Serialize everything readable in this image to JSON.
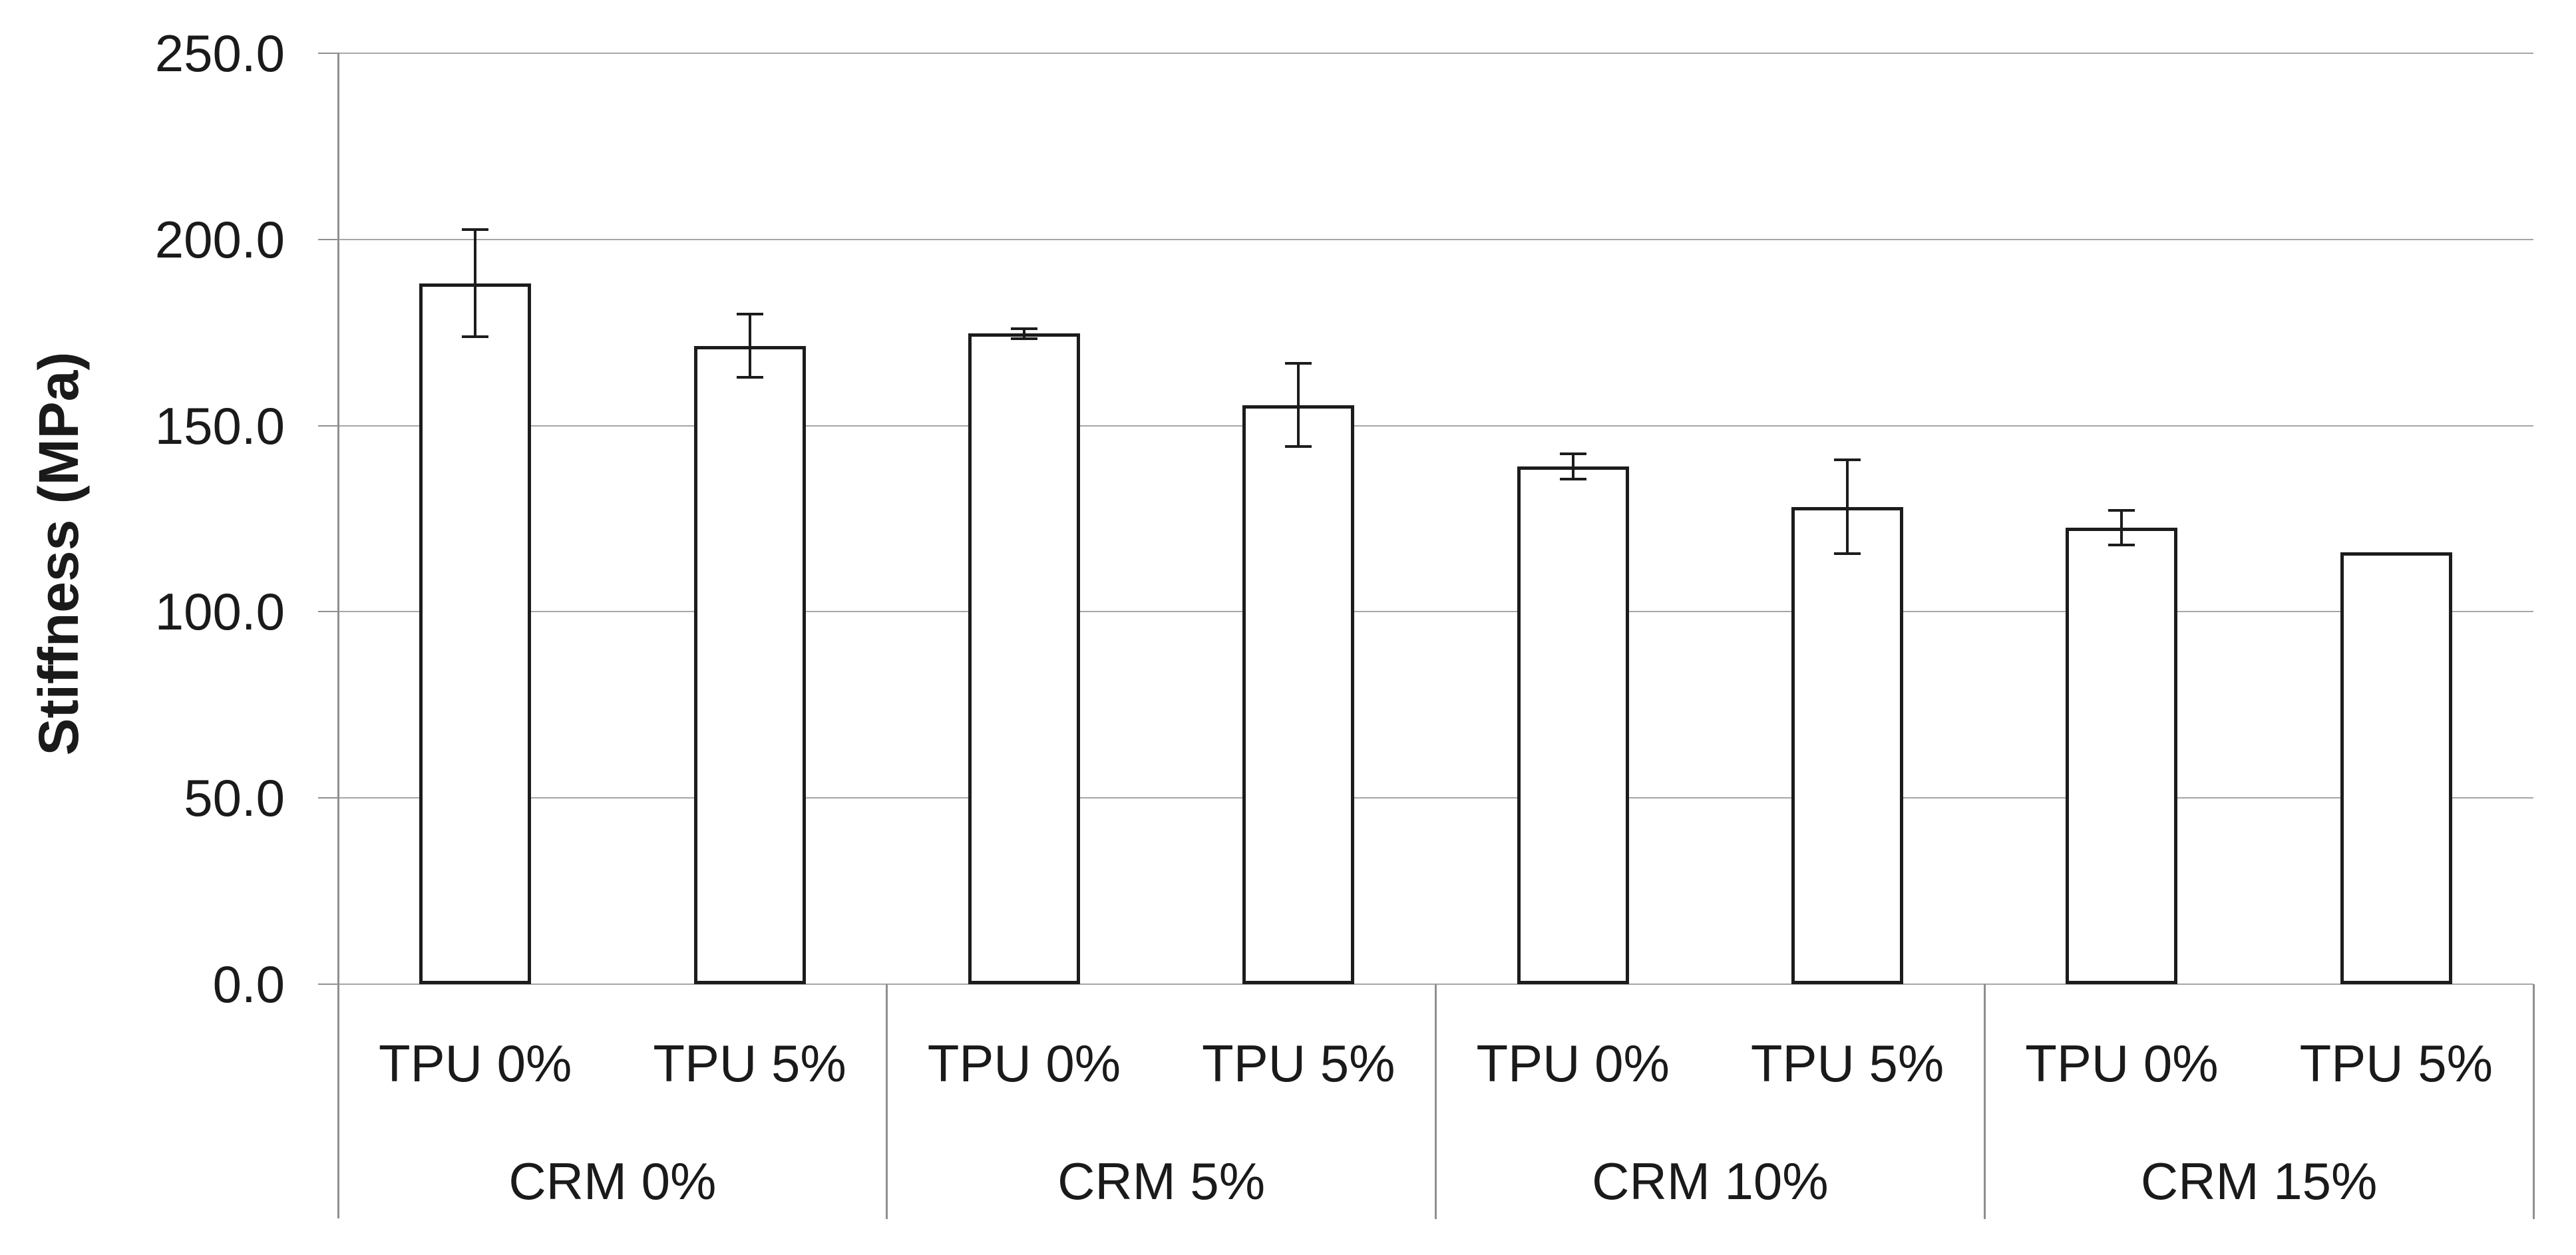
{
  "chart_data": {
    "type": "bar",
    "title": "",
    "ylabel": "Stiffness (MPa)",
    "xlabel": "",
    "ylim": [
      0,
      250
    ],
    "ytick_step": 50,
    "ytick_labels": [
      "0.0",
      "50.0",
      "100.0",
      "150.0",
      "200.0",
      "250.0"
    ],
    "grid": true,
    "legend": "none",
    "categories": [
      "TPU 0%",
      "TPU 5%",
      "TPU 0%",
      "TPU 5%",
      "TPU 0%",
      "TPU 5%",
      "TPU 0%",
      "TPU 5%"
    ],
    "groups": [
      {
        "label": "CRM 0%",
        "bars": [
          {
            "label": "TPU 0%",
            "value": 188.2,
            "error": 14.4
          },
          {
            "label": "TPU 5%",
            "value": 171.4,
            "error": 8.5
          }
        ]
      },
      {
        "label": "CRM 5%",
        "bars": [
          {
            "label": "TPU 0%",
            "value": 174.7,
            "error": 1.4
          },
          {
            "label": "TPU 5%",
            "value": 155.5,
            "error": 11.2
          }
        ]
      },
      {
        "label": "CRM 10%",
        "bars": [
          {
            "label": "TPU 0%",
            "value": 139.1,
            "error": 3.4
          },
          {
            "label": "TPU 5%",
            "value": 128.2,
            "error": 12.6
          }
        ]
      },
      {
        "label": "CRM 15%",
        "bars": [
          {
            "label": "TPU 0%",
            "value": 122.6,
            "error": 4.7
          },
          {
            "label": "TPU 5%",
            "value": 116.0,
            "error": null
          }
        ]
      }
    ],
    "colors": {
      "bar_fill": "#ffffff",
      "bar_border": "#1c1c1c",
      "error_bar": "#1c1c1c",
      "gridline": "#a6a6a6",
      "axis": "#8f8f8f",
      "text": "#1a1a1a"
    }
  }
}
